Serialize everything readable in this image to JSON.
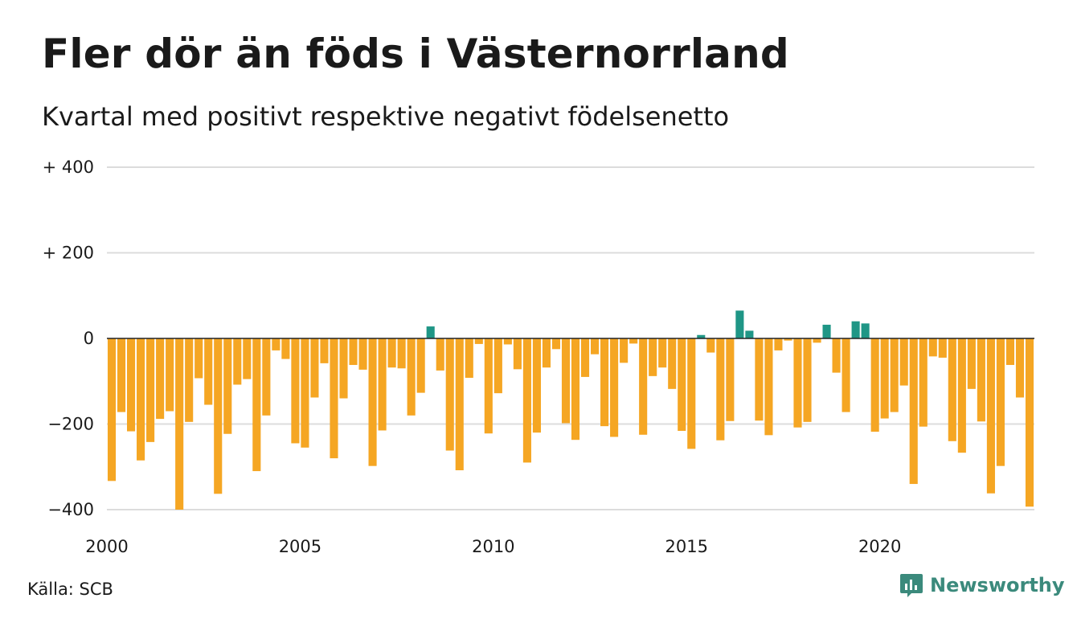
{
  "chart_data": {
    "type": "bar",
    "title": "Fler dör än föds i Västernorrland",
    "subtitle": "Kvartal med positivt respektive negativt födelsenetto",
    "source": "Källa: SCB",
    "brand": "Newsworthy",
    "x_start_year": 2000,
    "periods_per_year": 4,
    "ylim": [
      -400,
      400
    ],
    "y_ticks": [
      {
        "value": 400,
        "label": "+ 400"
      },
      {
        "value": 200,
        "label": "+ 200"
      },
      {
        "value": 0,
        "label": "0"
      },
      {
        "value": -200,
        "label": "−200"
      },
      {
        "value": -400,
        "label": "−400"
      }
    ],
    "x_ticks": [
      {
        "value": 2000,
        "label": "2000"
      },
      {
        "value": 2005,
        "label": "2005"
      },
      {
        "value": 2010,
        "label": "2010"
      },
      {
        "value": 2015,
        "label": "2015"
      },
      {
        "value": 2020,
        "label": "2020"
      }
    ],
    "colors": {
      "negative": "#f5a623",
      "positive": "#1f9686",
      "grid": "#dcdcdc",
      "zero": "#222222"
    },
    "values": [
      -333,
      -172,
      -217,
      -285,
      -242,
      -188,
      -170,
      -400,
      -195,
      -93,
      -155,
      -363,
      -223,
      -108,
      -95,
      -310,
      -180,
      -28,
      -48,
      -245,
      -255,
      -138,
      -58,
      -280,
      -140,
      -62,
      -73,
      -298,
      -215,
      -68,
      -70,
      -180,
      -127,
      28,
      -75,
      -262,
      -308,
      -92,
      -13,
      -222,
      -128,
      -14,
      -72,
      -290,
      -220,
      -68,
      -25,
      -198,
      -237,
      -90,
      -37,
      -205,
      -230,
      -57,
      -12,
      -225,
      -88,
      -68,
      -118,
      -216,
      -258,
      8,
      -33,
      -238,
      -193,
      65,
      18,
      -192,
      -226,
      -28,
      -5,
      -208,
      -195,
      -10,
      32,
      -80,
      -172,
      40,
      35,
      -218,
      -187,
      -172,
      -110,
      -340,
      -206,
      -42,
      -45,
      -240,
      -267,
      -118,
      -194,
      -362,
      -298,
      -62,
      -138,
      -393
    ]
  }
}
